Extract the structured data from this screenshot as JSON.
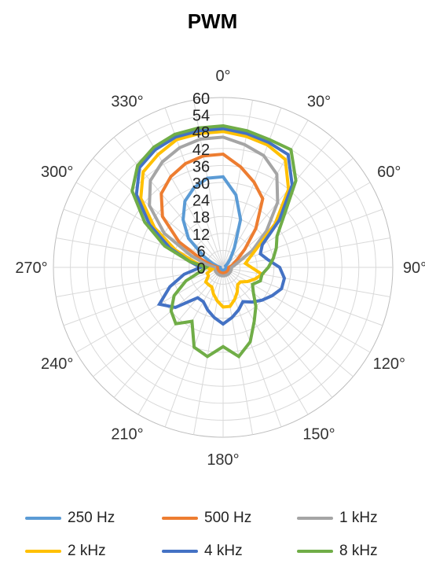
{
  "chart_data": {
    "type": "radar",
    "title": "PWM",
    "angle_tick_labels": [
      "0°",
      "30°",
      "60°",
      "90°",
      "120°",
      "150°",
      "180°",
      "210°",
      "240°",
      "270°",
      "300°",
      "330°"
    ],
    "radial_tick_labels": [
      "0",
      "6",
      "12",
      "18",
      "24",
      "30",
      "36",
      "42",
      "48",
      "54",
      "60"
    ],
    "rlim": [
      0,
      60
    ],
    "angle_step_deg": 10,
    "grid": true,
    "legend_position": "bottom",
    "angles_deg": [
      0,
      10,
      20,
      30,
      40,
      50,
      60,
      70,
      80,
      90,
      100,
      110,
      120,
      130,
      140,
      150,
      160,
      170,
      180,
      190,
      200,
      210,
      220,
      230,
      240,
      250,
      260,
      270,
      280,
      290,
      300,
      310,
      320,
      330,
      340,
      350
    ],
    "series": [
      {
        "name": "250 Hz",
        "color": "#5b9bd5",
        "values": [
          32,
          26,
          18,
          8,
          4,
          2,
          1,
          1,
          1,
          1,
          1,
          1,
          1,
          1,
          1,
          1,
          1,
          1,
          1,
          1,
          1,
          1,
          1,
          1,
          1,
          1,
          1,
          1,
          2,
          4,
          8,
          16,
          22,
          27,
          30,
          32
        ]
      },
      {
        "name": "500 Hz",
        "color": "#ed7d31",
        "values": [
          40,
          36,
          32,
          28,
          18,
          10,
          6,
          4,
          3,
          2,
          2,
          2,
          2,
          2,
          2,
          2,
          2,
          2,
          2,
          2,
          2,
          2,
          2,
          2,
          2,
          2,
          2,
          2,
          4,
          8,
          18,
          28,
          34,
          37,
          39,
          40
        ]
      },
      {
        "name": "1 kHz",
        "color": "#a5a5a5",
        "values": [
          46,
          44,
          42,
          38,
          30,
          20,
          12,
          6,
          4,
          3,
          3,
          3,
          3,
          3,
          3,
          3,
          3,
          3,
          3,
          3,
          3,
          3,
          3,
          3,
          3,
          3,
          3,
          3,
          6,
          12,
          24,
          34,
          40,
          43,
          45,
          46
        ]
      },
      {
        "name": "2 kHz",
        "color": "#ffc000",
        "values": [
          48,
          47,
          46,
          44,
          36,
          24,
          14,
          10,
          8,
          10,
          14,
          12,
          10,
          8,
          8,
          10,
          12,
          14,
          14,
          12,
          10,
          8,
          8,
          8,
          6,
          6,
          4,
          6,
          10,
          18,
          28,
          38,
          44,
          46,
          48,
          48
        ]
      },
      {
        "name": "4 kHz",
        "color": "#4472c4",
        "values": [
          49,
          48,
          47,
          46,
          38,
          26,
          16,
          14,
          16,
          20,
          22,
          22,
          20,
          18,
          16,
          14,
          16,
          18,
          20,
          18,
          16,
          14,
          14,
          22,
          26,
          20,
          14,
          8,
          12,
          20,
          30,
          40,
          46,
          48,
          49,
          49
        ]
      },
      {
        "name": "8 kHz",
        "color": "#70ad47",
        "values": [
          50,
          49,
          48,
          48,
          40,
          28,
          22,
          20,
          18,
          16,
          14,
          14,
          12,
          14,
          18,
          22,
          28,
          32,
          28,
          32,
          30,
          22,
          26,
          24,
          20,
          14,
          8,
          6,
          12,
          22,
          32,
          42,
          47,
          49,
          50,
          50
        ]
      }
    ]
  }
}
